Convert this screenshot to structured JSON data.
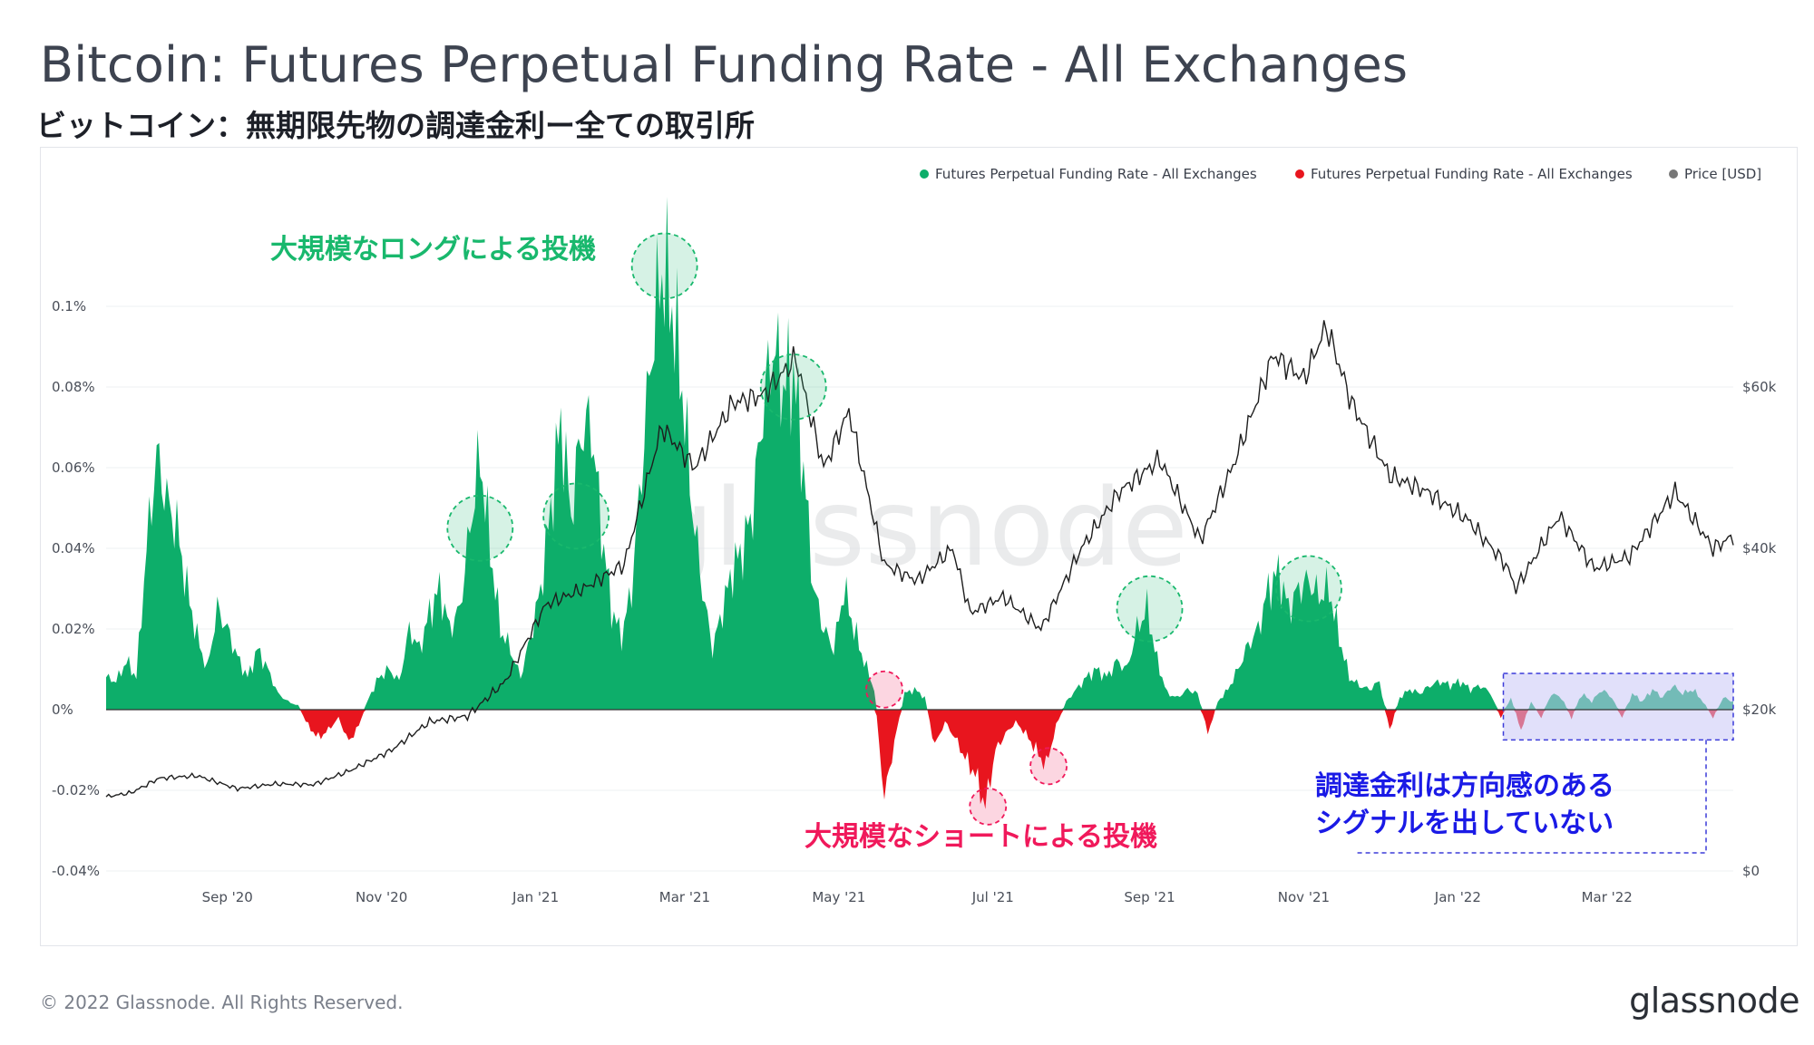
{
  "header": {
    "title": "Bitcoin: Futures Perpetual Funding Rate - All Exchanges",
    "subtitle": "ビットコイン：無期限先物の調達金利ー全ての取引所"
  },
  "footer": {
    "copyright": "© 2022 Glassnode. All Rights Reserved.",
    "brand": "glassnode"
  },
  "colors": {
    "positive": "#0dae6a",
    "negative": "#e8151e",
    "price": "#1e1e1e",
    "grid": "#eef0f3",
    "long_note": "#19b86d",
    "short_note": "#f0195b",
    "neutral_note": "#1a1ae6",
    "highlight_fill": "#c8c6f5",
    "highlight_border": "#3b3bd9"
  },
  "chart_data": {
    "type": "area",
    "title": "Bitcoin: Futures Perpetual Funding Rate - All Exchanges",
    "watermark": "glassnode",
    "x_range": [
      "2020-07-15",
      "2022-04-20"
    ],
    "x_ticks": [
      {
        "date": "2020-09-01",
        "label": "Sep '20"
      },
      {
        "date": "2020-11-01",
        "label": "Nov '20"
      },
      {
        "date": "2021-01-01",
        "label": "Jan '21"
      },
      {
        "date": "2021-03-01",
        "label": "Mar '21"
      },
      {
        "date": "2021-05-01",
        "label": "May '21"
      },
      {
        "date": "2021-07-01",
        "label": "Jul '21"
      },
      {
        "date": "2021-09-01",
        "label": "Sep '21"
      },
      {
        "date": "2021-11-01",
        "label": "Nov '21"
      },
      {
        "date": "2022-01-01",
        "label": "Jan '22"
      },
      {
        "date": "2022-03-01",
        "label": "Mar '22"
      }
    ],
    "y_left": {
      "range": [
        -0.04,
        0.12
      ],
      "ticks": [
        {
          "value": 0.1,
          "label": "0.1%"
        },
        {
          "value": 0.08,
          "label": "0.08%"
        },
        {
          "value": 0.06,
          "label": "0.06%"
        },
        {
          "value": 0.04,
          "label": "0.04%"
        },
        {
          "value": 0.02,
          "label": "0.02%"
        },
        {
          "value": 0,
          "label": "0%"
        },
        {
          "value": -0.02,
          "label": "-0.02%"
        },
        {
          "value": -0.04,
          "label": "-0.04%"
        }
      ]
    },
    "y_right": {
      "range": [
        0,
        80000
      ],
      "ticks": [
        {
          "value": 60000,
          "label": "$60k"
        },
        {
          "value": 40000,
          "label": "$40k"
        },
        {
          "value": 20000,
          "label": "$20k"
        },
        {
          "value": 0,
          "label": "$0"
        }
      ]
    },
    "legend": [
      {
        "name": "Futures Perpetual Funding Rate - All Exchanges",
        "color": "#0dae6a"
      },
      {
        "name": "Futures Perpetual Funding Rate - All Exchanges",
        "color": "#e8151e"
      },
      {
        "name": "Price [USD]",
        "color": "#777777"
      }
    ],
    "legend_position": "top-right",
    "funding_rate_series": {
      "name": "Funding Rate (%)",
      "points": [
        [
          "2020-07-15",
          0.008
        ],
        [
          "2020-07-19",
          0.007
        ],
        [
          "2020-07-23",
          0.012
        ],
        [
          "2020-07-27",
          0.008
        ],
        [
          "2020-07-31",
          0.04
        ],
        [
          "2020-08-04",
          0.063
        ],
        [
          "2020-08-08",
          0.052
        ],
        [
          "2020-08-12",
          0.045
        ],
        [
          "2020-08-16",
          0.03
        ],
        [
          "2020-08-20",
          0.018
        ],
        [
          "2020-08-24",
          0.01
        ],
        [
          "2020-08-28",
          0.025
        ],
        [
          "2020-09-01",
          0.02
        ],
        [
          "2020-09-05",
          0.013
        ],
        [
          "2020-09-09",
          0.008
        ],
        [
          "2020-09-13",
          0.015
        ],
        [
          "2020-09-17",
          0.01
        ],
        [
          "2020-09-21",
          0.004
        ],
        [
          "2020-09-25",
          0.002
        ],
        [
          "2020-09-29",
          0.001
        ],
        [
          "2020-10-03",
          -0.004
        ],
        [
          "2020-10-07",
          -0.007
        ],
        [
          "2020-10-11",
          -0.005
        ],
        [
          "2020-10-15",
          -0.002
        ],
        [
          "2020-10-19",
          -0.008
        ],
        [
          "2020-10-23",
          -0.004
        ],
        [
          "2020-10-27",
          0.003
        ],
        [
          "2020-10-31",
          0.008
        ],
        [
          "2020-11-04",
          0.01
        ],
        [
          "2020-11-08",
          0.007
        ],
        [
          "2020-11-12",
          0.02
        ],
        [
          "2020-11-16",
          0.015
        ],
        [
          "2020-11-20",
          0.024
        ],
        [
          "2020-11-24",
          0.03
        ],
        [
          "2020-11-28",
          0.02
        ],
        [
          "2020-12-02",
          0.025
        ],
        [
          "2020-12-06",
          0.045
        ],
        [
          "2020-12-10",
          0.063
        ],
        [
          "2020-12-14",
          0.04
        ],
        [
          "2020-12-18",
          0.02
        ],
        [
          "2020-12-22",
          0.015
        ],
        [
          "2020-12-26",
          0.008
        ],
        [
          "2020-12-30",
          0.018
        ],
        [
          "2021-01-03",
          0.03
        ],
        [
          "2021-01-07",
          0.05
        ],
        [
          "2021-01-11",
          0.072
        ],
        [
          "2021-01-15",
          0.048
        ],
        [
          "2021-01-19",
          0.069
        ],
        [
          "2021-01-23",
          0.071
        ],
        [
          "2021-01-27",
          0.045
        ],
        [
          "2021-01-31",
          0.025
        ],
        [
          "2021-02-04",
          0.018
        ],
        [
          "2021-02-08",
          0.03
        ],
        [
          "2021-02-12",
          0.06
        ],
        [
          "2021-02-16",
          0.09
        ],
        [
          "2021-02-20",
          0.11
        ],
        [
          "2021-02-24",
          0.1
        ],
        [
          "2021-02-28",
          0.08
        ],
        [
          "2021-03-04",
          0.05
        ],
        [
          "2021-03-08",
          0.03
        ],
        [
          "2021-03-12",
          0.015
        ],
        [
          "2021-03-16",
          0.025
        ],
        [
          "2021-03-20",
          0.035
        ],
        [
          "2021-03-24",
          0.04
        ],
        [
          "2021-03-28",
          0.05
        ],
        [
          "2021-04-01",
          0.075
        ],
        [
          "2021-04-05",
          0.09
        ],
        [
          "2021-04-09",
          0.08
        ],
        [
          "2021-04-13",
          0.084
        ],
        [
          "2021-04-17",
          0.06
        ],
        [
          "2021-04-21",
          0.03
        ],
        [
          "2021-04-25",
          0.02
        ],
        [
          "2021-04-29",
          0.015
        ],
        [
          "2021-05-03",
          0.03
        ],
        [
          "2021-05-07",
          0.02
        ],
        [
          "2021-05-11",
          0.012
        ],
        [
          "2021-05-15",
          0.005
        ],
        [
          "2021-05-19",
          -0.022
        ],
        [
          "2021-05-23",
          -0.008
        ],
        [
          "2021-05-27",
          0.004
        ],
        [
          "2021-05-31",
          0.005
        ],
        [
          "2021-06-04",
          0.003
        ],
        [
          "2021-06-08",
          -0.009
        ],
        [
          "2021-06-12",
          -0.003
        ],
        [
          "2021-06-16",
          -0.007
        ],
        [
          "2021-06-20",
          -0.012
        ],
        [
          "2021-06-24",
          -0.016
        ],
        [
          "2021-06-28",
          -0.024
        ],
        [
          "2021-07-02",
          -0.01
        ],
        [
          "2021-07-06",
          -0.006
        ],
        [
          "2021-07-10",
          -0.003
        ],
        [
          "2021-07-14",
          -0.006
        ],
        [
          "2021-07-18",
          -0.01
        ],
        [
          "2021-07-22",
          -0.014
        ],
        [
          "2021-07-26",
          -0.004
        ],
        [
          "2021-07-30",
          0.002
        ],
        [
          "2021-08-03",
          0.005
        ],
        [
          "2021-08-07",
          0.008
        ],
        [
          "2021-08-11",
          0.01
        ],
        [
          "2021-08-15",
          0.008
        ],
        [
          "2021-08-19",
          0.012
        ],
        [
          "2021-08-23",
          0.01
        ],
        [
          "2021-08-27",
          0.02
        ],
        [
          "2021-08-31",
          0.025
        ],
        [
          "2021-09-04",
          0.012
        ],
        [
          "2021-09-08",
          0.004
        ],
        [
          "2021-09-12",
          0.003
        ],
        [
          "2021-09-16",
          0.005
        ],
        [
          "2021-09-20",
          0.004
        ],
        [
          "2021-09-24",
          -0.006
        ],
        [
          "2021-09-28",
          0.002
        ],
        [
          "2021-10-02",
          0.005
        ],
        [
          "2021-10-06",
          0.01
        ],
        [
          "2021-10-10",
          0.016
        ],
        [
          "2021-10-14",
          0.02
        ],
        [
          "2021-10-18",
          0.03
        ],
        [
          "2021-10-22",
          0.034
        ],
        [
          "2021-10-26",
          0.025
        ],
        [
          "2021-10-30",
          0.03
        ],
        [
          "2021-11-03",
          0.032
        ],
        [
          "2021-11-07",
          0.028
        ],
        [
          "2021-11-11",
          0.03
        ],
        [
          "2021-11-15",
          0.018
        ],
        [
          "2021-11-19",
          0.008
        ],
        [
          "2021-11-23",
          0.006
        ],
        [
          "2021-11-27",
          0.005
        ],
        [
          "2021-12-01",
          0.007
        ],
        [
          "2021-12-05",
          -0.005
        ],
        [
          "2021-12-09",
          0.003
        ],
        [
          "2021-12-13",
          0.005
        ],
        [
          "2021-12-17",
          0.004
        ],
        [
          "2021-12-21",
          0.006
        ],
        [
          "2021-12-25",
          0.007
        ],
        [
          "2021-12-29",
          0.006
        ],
        [
          "2022-01-02",
          0.007
        ],
        [
          "2022-01-06",
          0.005
        ],
        [
          "2022-01-10",
          0.006
        ],
        [
          "2022-01-14",
          0.004
        ],
        [
          "2022-01-18",
          -0.002
        ],
        [
          "2022-01-22",
          0.003
        ],
        [
          "2022-01-26",
          -0.005
        ],
        [
          "2022-01-30",
          0.002
        ],
        [
          "2022-02-03",
          -0.002
        ],
        [
          "2022-02-07",
          0.004
        ],
        [
          "2022-02-11",
          0.003
        ],
        [
          "2022-02-15",
          -0.002
        ],
        [
          "2022-02-19",
          0.004
        ],
        [
          "2022-02-23",
          0.002
        ],
        [
          "2022-02-27",
          0.005
        ],
        [
          "2022-03-03",
          0.003
        ],
        [
          "2022-03-07",
          -0.002
        ],
        [
          "2022-03-11",
          0.004
        ],
        [
          "2022-03-15",
          0.002
        ],
        [
          "2022-03-19",
          0.005
        ],
        [
          "2022-03-23",
          0.003
        ],
        [
          "2022-03-27",
          0.006
        ],
        [
          "2022-03-31",
          0.004
        ],
        [
          "2022-04-04",
          0.005
        ],
        [
          "2022-04-08",
          0.002
        ],
        [
          "2022-04-12",
          -0.002
        ],
        [
          "2022-04-16",
          0.003
        ],
        [
          "2022-04-20",
          0.002
        ]
      ]
    },
    "price_series": {
      "name": "Price [USD]",
      "points": [
        [
          "2020-07-15",
          9200
        ],
        [
          "2020-07-25",
          9700
        ],
        [
          "2020-08-05",
          11500
        ],
        [
          "2020-08-20",
          11800
        ],
        [
          "2020-09-05",
          10200
        ],
        [
          "2020-09-20",
          10800
        ],
        [
          "2020-10-05",
          10700
        ],
        [
          "2020-10-20",
          12500
        ],
        [
          "2020-11-05",
          15000
        ],
        [
          "2020-11-20",
          18500
        ],
        [
          "2020-12-05",
          19200
        ],
        [
          "2020-12-20",
          23500
        ],
        [
          "2021-01-05",
          33000
        ],
        [
          "2021-01-20",
          35000
        ],
        [
          "2021-02-05",
          38000
        ],
        [
          "2021-02-20",
          55000
        ],
        [
          "2021-03-05",
          50000
        ],
        [
          "2021-03-20",
          58000
        ],
        [
          "2021-04-01",
          59000
        ],
        [
          "2021-04-14",
          63500
        ],
        [
          "2021-04-25",
          50000
        ],
        [
          "2021-05-05",
          57000
        ],
        [
          "2021-05-19",
          38000
        ],
        [
          "2021-06-01",
          36000
        ],
        [
          "2021-06-15",
          40000
        ],
        [
          "2021-06-22",
          32000
        ],
        [
          "2021-07-05",
          34000
        ],
        [
          "2021-07-20",
          30000
        ],
        [
          "2021-08-05",
          40000
        ],
        [
          "2021-08-20",
          47000
        ],
        [
          "2021-09-05",
          51000
        ],
        [
          "2021-09-21",
          41000
        ],
        [
          "2021-10-05",
          51000
        ],
        [
          "2021-10-20",
          64000
        ],
        [
          "2021-11-01",
          61000
        ],
        [
          "2021-11-10",
          67500
        ],
        [
          "2021-11-20",
          58000
        ],
        [
          "2021-12-05",
          49000
        ],
        [
          "2021-12-20",
          47000
        ],
        [
          "2022-01-05",
          43500
        ],
        [
          "2022-01-20",
          38000
        ],
        [
          "2022-01-24",
          35000
        ],
        [
          "2022-02-10",
          44000
        ],
        [
          "2022-02-24",
          37500
        ],
        [
          "2022-03-10",
          39000
        ],
        [
          "2022-03-28",
          47000
        ],
        [
          "2022-04-12",
          40000
        ],
        [
          "2022-04-20",
          41500
        ]
      ]
    },
    "annotations": [
      {
        "label": "大規模なロングによる投機",
        "type": "long"
      },
      {
        "label": "大規模なショートによる投機",
        "type": "short"
      },
      {
        "label": "調達金利は方向感のある",
        "type": "neutral"
      },
      {
        "label": "シグナルを出していない",
        "type": "neutral"
      }
    ],
    "long_circles": [
      "2020-12-10",
      "2021-01-17",
      "2021-02-21",
      "2021-04-13",
      "2021-09-01",
      "2021-11-03"
    ],
    "short_circles": [
      "2021-05-19",
      "2021-06-29",
      "2021-07-23"
    ],
    "neutral_range": [
      "2022-01-19",
      "2022-04-20"
    ]
  }
}
